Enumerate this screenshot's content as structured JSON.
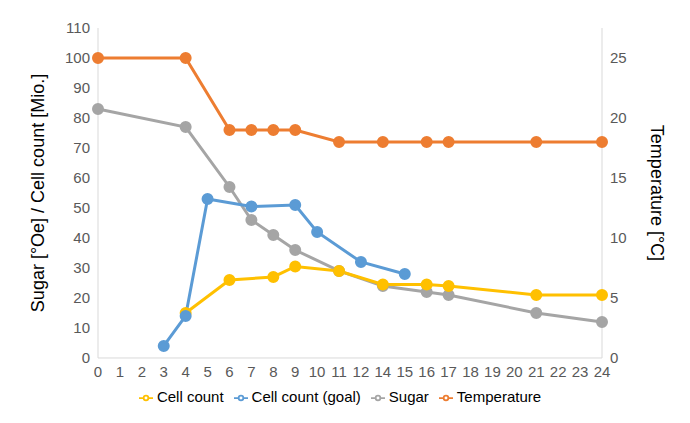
{
  "chart_data": {
    "type": "line",
    "y_label": "Sugar [°Oe] / Cell count [Mio.]",
    "y2_label": "Temperature [°C]",
    "categories": [
      "0",
      "1",
      "2",
      "3",
      "4",
      "5",
      "6",
      "7",
      "8",
      "9",
      "10",
      "11",
      "12",
      "14",
      "15",
      "16",
      "17",
      "18",
      "19",
      "20",
      "21",
      "22",
      "23",
      "24"
    ],
    "series": [
      {
        "name": "Sugar",
        "color": "#a5a5a5",
        "marker": "circle",
        "values": [
          83,
          null,
          null,
          null,
          77,
          null,
          57,
          46,
          41,
          36,
          null,
          29,
          null,
          24,
          null,
          22,
          21,
          null,
          null,
          null,
          15,
          null,
          null,
          12
        ]
      },
      {
        "name": "Cell count",
        "color": "#ffc000",
        "marker": "circle",
        "values": [
          null,
          null,
          null,
          null,
          15,
          null,
          26,
          null,
          27,
          30.5,
          null,
          29,
          null,
          24.5,
          null,
          24.5,
          24,
          null,
          null,
          null,
          21,
          null,
          null,
          21
        ]
      },
      {
        "name": "Cell count (goal)",
        "color": "#5b9bd5",
        "marker": "circle",
        "values": [
          null,
          null,
          null,
          4,
          14,
          53,
          null,
          50.5,
          null,
          51,
          42,
          null,
          32,
          null,
          28,
          null,
          null,
          null,
          null,
          null,
          null,
          null,
          null,
          null
        ]
      },
      {
        "name": "Temperature",
        "color": "#ed7d31",
        "marker": "circle",
        "axis": "y2",
        "values": [
          25,
          null,
          null,
          null,
          25,
          null,
          19,
          19,
          19,
          19,
          null,
          18,
          null,
          18,
          null,
          18,
          18,
          null,
          null,
          null,
          18,
          null,
          null,
          18
        ]
      }
    ],
    "ylim": [
      0,
      110
    ],
    "yticks": [
      0,
      10,
      20,
      30,
      40,
      50,
      60,
      70,
      80,
      90,
      100,
      110
    ],
    "y2lim": [
      0,
      27.5
    ],
    "y2ticks": [
      0,
      5,
      10,
      15,
      20,
      25
    ],
    "grid": false,
    "legend": "bottom"
  }
}
